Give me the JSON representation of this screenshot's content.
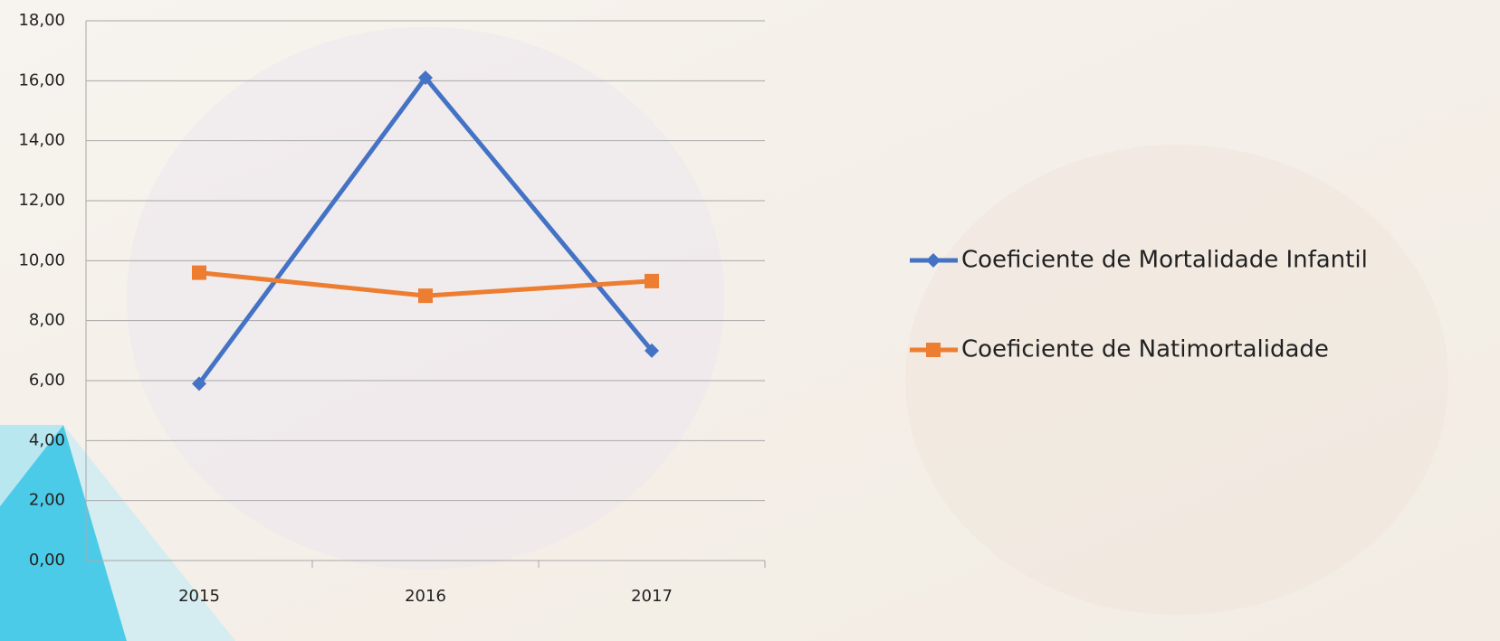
{
  "chart_data": {
    "type": "line",
    "categories": [
      "2015",
      "2016",
      "2017"
    ],
    "series": [
      {
        "name": "Coeficiente de Mortalidade Infantil",
        "color": "#4472c4",
        "marker": "diamond",
        "values": [
          5.9,
          16.1,
          7.0
        ]
      },
      {
        "name": "Coeficiente de Natimortalidade",
        "color": "#ed7d31",
        "marker": "square",
        "values": [
          9.6,
          8.83,
          9.32
        ]
      }
    ],
    "ylim": [
      0,
      18
    ],
    "yticks": [
      {
        "value": 0,
        "label": "0,00"
      },
      {
        "value": 2,
        "label": "2,00"
      },
      {
        "value": 4,
        "label": "4,00"
      },
      {
        "value": 6,
        "label": "6,00"
      },
      {
        "value": 8,
        "label": "8,00"
      },
      {
        "value": 10,
        "label": "10,00"
      },
      {
        "value": 12,
        "label": "12,00"
      },
      {
        "value": 14,
        "label": "14,00"
      },
      {
        "value": 16,
        "label": "16,00"
      },
      {
        "value": 18,
        "label": "18,00"
      }
    ],
    "grid": true,
    "legend": "right"
  }
}
